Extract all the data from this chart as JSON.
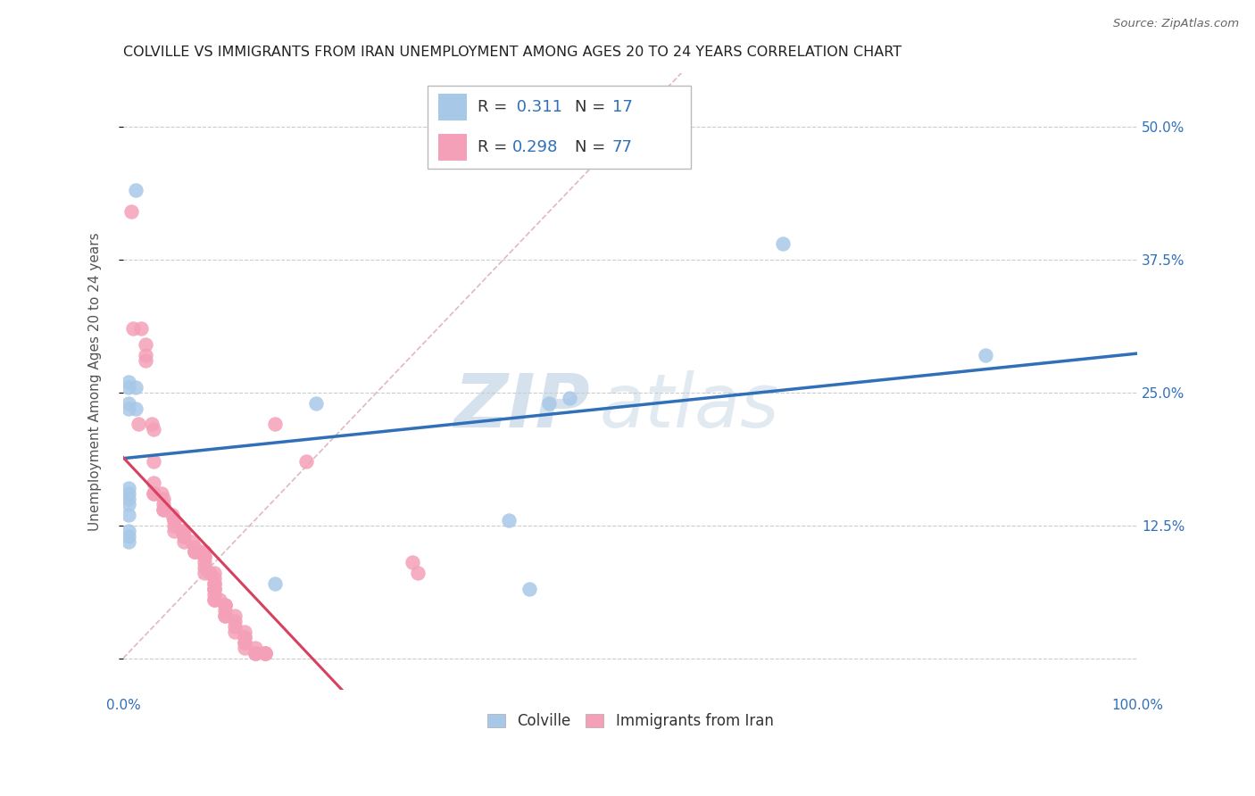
{
  "title": "COLVILLE VS IMMIGRANTS FROM IRAN UNEMPLOYMENT AMONG AGES 20 TO 24 YEARS CORRELATION CHART",
  "source": "Source: ZipAtlas.com",
  "ylabel": "Unemployment Among Ages 20 to 24 years",
  "xlim": [
    0,
    1.0
  ],
  "ylim": [
    -0.03,
    0.55
  ],
  "ytick_positions": [
    0.0,
    0.125,
    0.25,
    0.375,
    0.5
  ],
  "ytick_labels": [
    "",
    "12.5%",
    "25.0%",
    "37.5%",
    "50.0%"
  ],
  "color_colville": "#a8c8e8",
  "color_iran": "#f4a0b8",
  "color_line_colville": "#3070b8",
  "color_line_iran": "#d84060",
  "color_diag": "#e0b8c0",
  "watermark_zip": "ZIP",
  "watermark_atlas": "atlas",
  "colville_x": [
    0.012,
    0.012,
    0.005,
    0.005,
    0.005,
    0.005,
    0.012,
    0.005,
    0.005,
    0.005,
    0.005,
    0.005,
    0.005,
    0.005,
    0.19,
    0.42,
    0.44,
    0.65,
    0.85,
    0.38,
    0.4,
    0.15,
    0.005
  ],
  "colville_y": [
    0.44,
    0.255,
    0.26,
    0.255,
    0.24,
    0.235,
    0.235,
    0.16,
    0.155,
    0.15,
    0.145,
    0.135,
    0.12,
    0.115,
    0.24,
    0.24,
    0.245,
    0.39,
    0.285,
    0.13,
    0.065,
    0.07,
    0.11
  ],
  "iran_x": [
    0.008,
    0.01,
    0.018,
    0.022,
    0.022,
    0.022,
    0.015,
    0.028,
    0.03,
    0.03,
    0.03,
    0.03,
    0.03,
    0.038,
    0.04,
    0.04,
    0.04,
    0.04,
    0.048,
    0.05,
    0.05,
    0.05,
    0.05,
    0.058,
    0.06,
    0.06,
    0.06,
    0.06,
    0.068,
    0.07,
    0.07,
    0.07,
    0.07,
    0.075,
    0.08,
    0.08,
    0.08,
    0.08,
    0.08,
    0.08,
    0.085,
    0.09,
    0.09,
    0.09,
    0.09,
    0.09,
    0.09,
    0.09,
    0.09,
    0.09,
    0.09,
    0.095,
    0.1,
    0.1,
    0.1,
    0.1,
    0.1,
    0.1,
    0.11,
    0.11,
    0.11,
    0.11,
    0.12,
    0.12,
    0.12,
    0.12,
    0.12,
    0.12,
    0.13,
    0.13,
    0.13,
    0.13,
    0.14,
    0.14,
    0.14,
    0.14,
    0.15,
    0.18,
    0.285,
    0.29
  ],
  "iran_y": [
    0.42,
    0.31,
    0.31,
    0.295,
    0.285,
    0.28,
    0.22,
    0.22,
    0.215,
    0.185,
    0.165,
    0.155,
    0.155,
    0.155,
    0.15,
    0.145,
    0.14,
    0.14,
    0.135,
    0.13,
    0.13,
    0.125,
    0.12,
    0.12,
    0.12,
    0.115,
    0.115,
    0.11,
    0.11,
    0.105,
    0.1,
    0.1,
    0.1,
    0.1,
    0.1,
    0.095,
    0.095,
    0.09,
    0.085,
    0.08,
    0.08,
    0.08,
    0.075,
    0.07,
    0.07,
    0.065,
    0.065,
    0.065,
    0.06,
    0.055,
    0.055,
    0.055,
    0.05,
    0.05,
    0.05,
    0.045,
    0.04,
    0.04,
    0.04,
    0.035,
    0.03,
    0.025,
    0.025,
    0.02,
    0.02,
    0.015,
    0.015,
    0.01,
    0.01,
    0.005,
    0.005,
    0.005,
    0.005,
    0.005,
    0.005,
    0.005,
    0.22,
    0.185,
    0.09,
    0.08
  ],
  "title_fontsize": 11.5,
  "axis_label_fontsize": 11,
  "tick_fontsize": 11,
  "legend_fontsize": 13
}
